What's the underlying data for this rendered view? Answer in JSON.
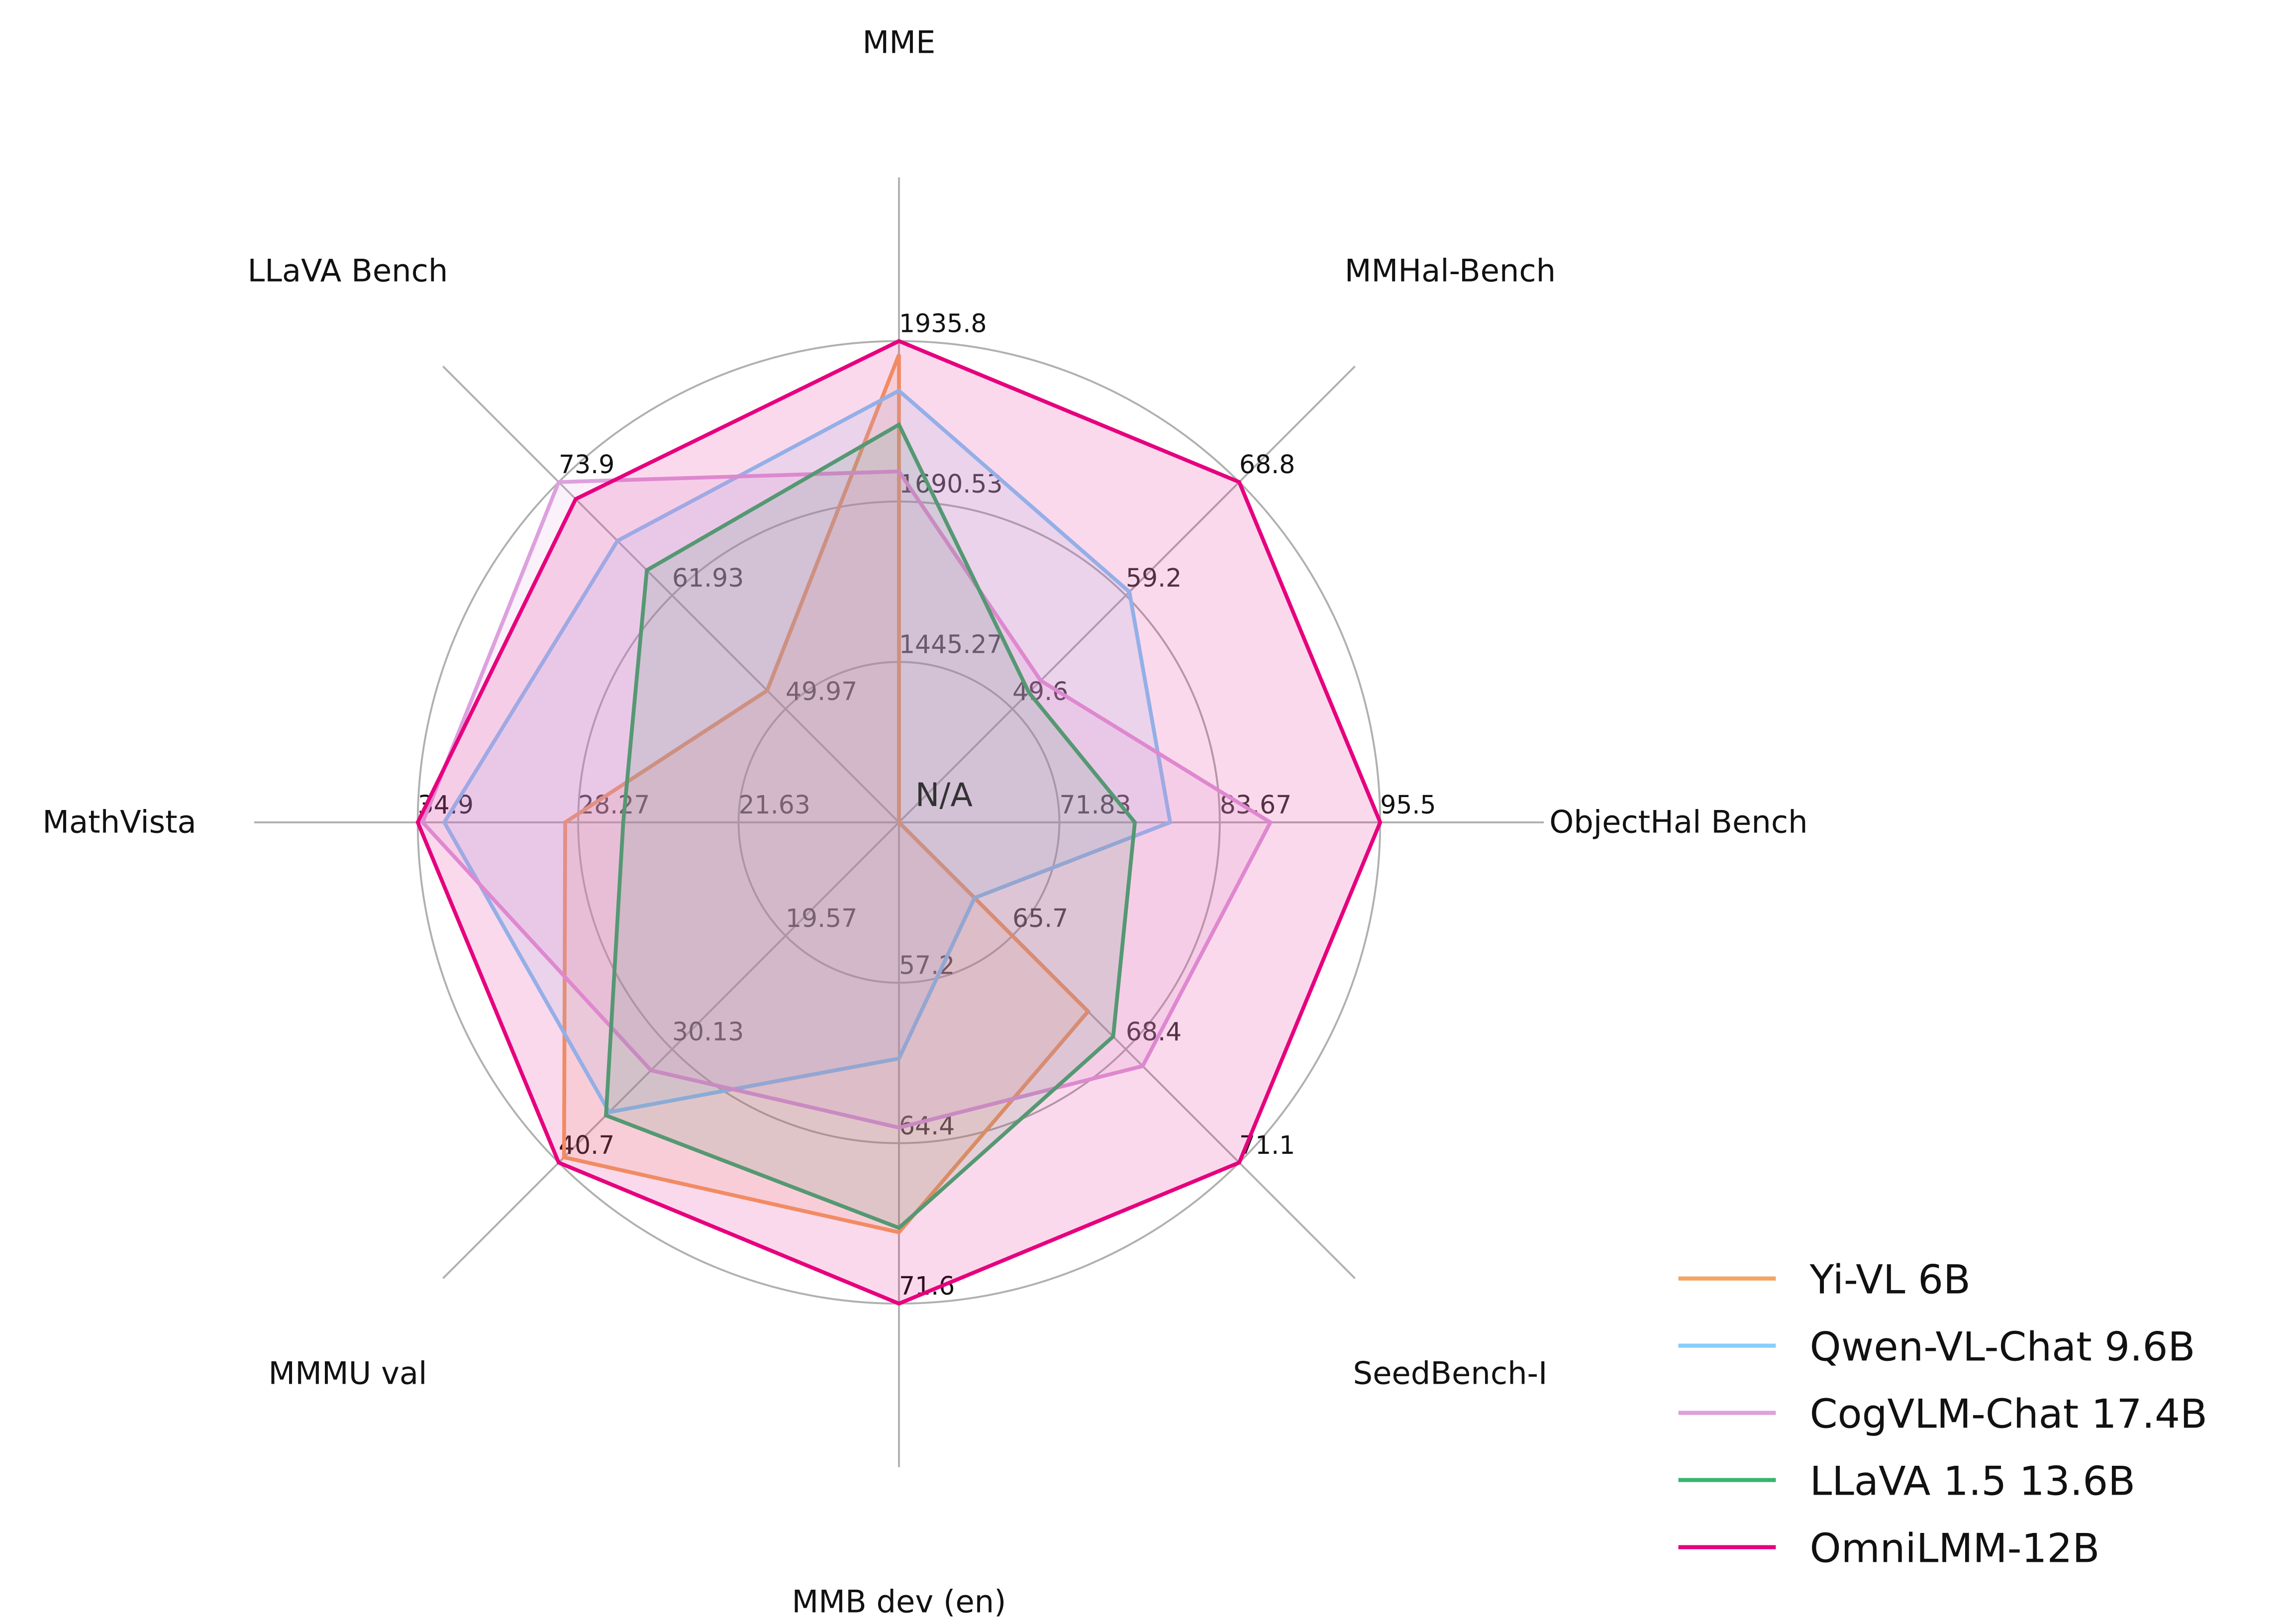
{
  "chart_data": {
    "type": "radar",
    "title": "",
    "axes": [
      {
        "label": "MME",
        "ticks": [
          "1445.27",
          "1690.53",
          "1935.8"
        ],
        "range": [
          1200,
          1935.8
        ]
      },
      {
        "label": "MMHal-Bench",
        "ticks": [
          "49.6",
          "59.2",
          "68.8"
        ],
        "range": [
          40,
          68.8
        ]
      },
      {
        "label": "ObjectHal Bench",
        "ticks": [
          "71.83",
          "83.67",
          "95.5"
        ],
        "range": [
          60,
          95.5
        ]
      },
      {
        "label": "SeedBench-I",
        "ticks": [
          "65.7",
          "68.4",
          "71.1"
        ],
        "range": [
          63,
          71.1
        ]
      },
      {
        "label": "MMB dev (en)",
        "ticks": [
          "57.2",
          "64.4",
          "71.6"
        ],
        "range": [
          50,
          71.6
        ]
      },
      {
        "label": "MMMU val",
        "ticks": [
          "19.57",
          "30.13",
          "40.7"
        ],
        "range": [
          9,
          40.7
        ]
      },
      {
        "label": "MathVista",
        "ticks": [
          "21.63",
          "28.27",
          "34.9"
        ],
        "range": [
          15,
          34.9
        ]
      },
      {
        "label": "LLaVA Bench",
        "ticks": [
          "49.97",
          "61.93",
          "73.9"
        ],
        "range": [
          38,
          73.9
        ]
      }
    ],
    "center_label": "N/A",
    "series": [
      {
        "name": "Yi-VL 6B",
        "color": "#f4a460",
        "values": [
          1915.1,
          null,
          null,
          67.5,
          68.4,
          40.2,
          28.8,
          51.9
        ]
      },
      {
        "name": "Qwen-VL-Chat 9.6B",
        "color": "#87cefa",
        "values": [
          1860.0,
          59.5,
          80.0,
          64.8,
          60.6,
          36.0,
          33.8,
          67.7
        ]
      },
      {
        "name": "CogVLM-Chat 17.4B",
        "color": "#dda0dd",
        "values": [
          1736.6,
          52.0,
          87.4,
          68.8,
          63.7,
          32.1,
          34.7,
          73.9
        ]
      },
      {
        "name": "LLaVA 1.5 13.6B",
        "color": "#3cb371",
        "values": [
          1808.0,
          51.0,
          77.4,
          68.1,
          68.2,
          36.3,
          26.4,
          64.6
        ]
      },
      {
        "name": "OmniLMM-12B",
        "color": "#e6007e",
        "values": [
          1935.8,
          68.8,
          95.5,
          71.1,
          71.6,
          40.7,
          34.9,
          72.1
        ]
      }
    ],
    "grid": true,
    "legend_position": "bottom-right"
  }
}
